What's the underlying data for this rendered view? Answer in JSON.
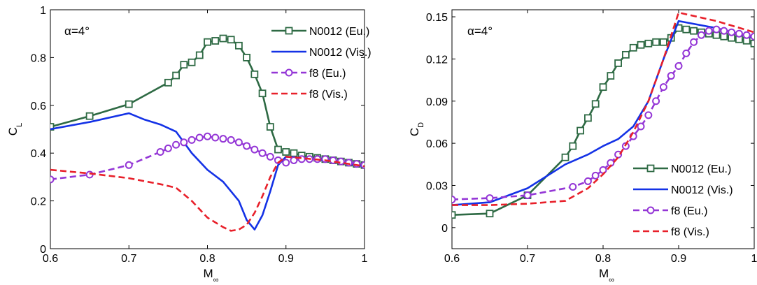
{
  "chart_data": [
    {
      "type": "line",
      "annotation": "α=4°",
      "xlabel": "M",
      "xlabel_sub": "∞",
      "ylabel": "C",
      "ylabel_sub": "L",
      "xlim": [
        0.6,
        1.0
      ],
      "ylim": [
        0,
        1.0
      ],
      "xticks": [
        0.6,
        0.7,
        0.8,
        0.9,
        1.0
      ],
      "xtick_labels": [
        "0.6",
        "0.7",
        "0.8",
        "0.9",
        "1"
      ],
      "yticks": [
        0,
        0.2,
        0.4,
        0.6,
        0.8,
        1.0
      ],
      "ytick_labels": [
        "0",
        "0.2",
        "0.4",
        "0.6",
        "0.8",
        "1"
      ],
      "grid": false,
      "legend_position": "top-right",
      "series": [
        {
          "name": "N0012 (Eu.)",
          "color": "#2e6a44",
          "line": "solid",
          "marker": "square",
          "x": [
            0.6,
            0.65,
            0.7,
            0.75,
            0.76,
            0.77,
            0.78,
            0.79,
            0.8,
            0.81,
            0.82,
            0.83,
            0.84,
            0.85,
            0.86,
            0.87,
            0.88,
            0.89,
            0.9,
            0.91,
            0.92,
            0.93,
            0.94,
            0.95,
            0.96,
            0.97,
            0.98,
            0.99,
            1.0
          ],
          "y": [
            0.51,
            0.555,
            0.605,
            0.695,
            0.725,
            0.77,
            0.78,
            0.81,
            0.865,
            0.87,
            0.88,
            0.875,
            0.85,
            0.8,
            0.73,
            0.65,
            0.51,
            0.415,
            0.405,
            0.4,
            0.39,
            0.385,
            0.38,
            0.375,
            0.37,
            0.365,
            0.36,
            0.355,
            0.35
          ]
        },
        {
          "name": "N0012 (Vis.)",
          "color": "#1432e6",
          "line": "solid",
          "marker": "none",
          "x": [
            0.6,
            0.65,
            0.7,
            0.72,
            0.74,
            0.76,
            0.78,
            0.8,
            0.82,
            0.84,
            0.85,
            0.86,
            0.87,
            0.88,
            0.89,
            0.9,
            0.92,
            0.95,
            1.0
          ],
          "y": [
            0.5,
            0.53,
            0.567,
            0.54,
            0.52,
            0.49,
            0.4,
            0.33,
            0.28,
            0.2,
            0.12,
            0.08,
            0.14,
            0.24,
            0.35,
            0.385,
            0.38,
            0.37,
            0.345
          ]
        },
        {
          "name": "f8  (Eu.)",
          "color": "#9436d6",
          "line": "dashed",
          "marker": "circle",
          "x": [
            0.6,
            0.65,
            0.7,
            0.74,
            0.75,
            0.76,
            0.77,
            0.78,
            0.79,
            0.8,
            0.81,
            0.82,
            0.83,
            0.84,
            0.85,
            0.86,
            0.87,
            0.88,
            0.89,
            0.9,
            0.91,
            0.92,
            0.93,
            0.94,
            0.95,
            0.96,
            0.97,
            0.98,
            0.99,
            1.0
          ],
          "y": [
            0.29,
            0.31,
            0.35,
            0.405,
            0.42,
            0.435,
            0.445,
            0.455,
            0.465,
            0.47,
            0.465,
            0.46,
            0.455,
            0.445,
            0.43,
            0.415,
            0.4,
            0.385,
            0.37,
            0.36,
            0.37,
            0.375,
            0.375,
            0.375,
            0.375,
            0.37,
            0.365,
            0.36,
            0.355,
            0.35
          ]
        },
        {
          "name": "f8  (Vis.)",
          "color": "#e8202a",
          "line": "dashed",
          "marker": "none",
          "x": [
            0.6,
            0.65,
            0.7,
            0.74,
            0.76,
            0.78,
            0.8,
            0.82,
            0.83,
            0.84,
            0.85,
            0.86,
            0.87,
            0.88,
            0.89,
            0.9,
            0.95,
            1.0
          ],
          "y": [
            0.33,
            0.315,
            0.295,
            0.27,
            0.255,
            0.2,
            0.13,
            0.09,
            0.075,
            0.08,
            0.1,
            0.15,
            0.22,
            0.3,
            0.36,
            0.385,
            0.37,
            0.345
          ]
        }
      ]
    },
    {
      "type": "line",
      "annotation": "α=4°",
      "xlabel": "M",
      "xlabel_sub": "∞",
      "ylabel": "C",
      "ylabel_sub": "D",
      "xlim": [
        0.6,
        1.0
      ],
      "ylim": [
        -0.015,
        0.155
      ],
      "xticks": [
        0.6,
        0.7,
        0.8,
        0.9,
        1.0
      ],
      "xtick_labels": [
        "0.6",
        "0.7",
        "0.8",
        "0.9",
        "1"
      ],
      "yticks": [
        0,
        0.03,
        0.06,
        0.09,
        0.12,
        0.15
      ],
      "ytick_labels": [
        "0",
        "0.03",
        "0.06",
        "0.09",
        "0.12",
        "0.15"
      ],
      "grid": false,
      "legend_position": "bottom-right",
      "series": [
        {
          "name": "N0012 (Eu.)",
          "color": "#2e6a44",
          "line": "solid",
          "marker": "square",
          "x": [
            0.6,
            0.65,
            0.7,
            0.75,
            0.76,
            0.77,
            0.78,
            0.79,
            0.8,
            0.81,
            0.82,
            0.83,
            0.84,
            0.85,
            0.86,
            0.87,
            0.88,
            0.89,
            0.9,
            0.91,
            0.92,
            0.93,
            0.94,
            0.95,
            0.96,
            0.97,
            0.98,
            0.99,
            1.0
          ],
          "y": [
            0.009,
            0.01,
            0.023,
            0.05,
            0.058,
            0.069,
            0.078,
            0.088,
            0.1,
            0.108,
            0.117,
            0.123,
            0.128,
            0.13,
            0.131,
            0.132,
            0.132,
            0.135,
            0.142,
            0.141,
            0.14,
            0.139,
            0.138,
            0.137,
            0.136,
            0.135,
            0.134,
            0.133,
            0.131
          ]
        },
        {
          "name": "N0012 (Vis.)",
          "color": "#1432e6",
          "line": "solid",
          "marker": "none",
          "x": [
            0.6,
            0.65,
            0.7,
            0.75,
            0.78,
            0.8,
            0.82,
            0.84,
            0.86,
            0.88,
            0.9,
            0.95,
            1.0
          ],
          "y": [
            0.016,
            0.018,
            0.028,
            0.045,
            0.052,
            0.058,
            0.063,
            0.072,
            0.09,
            0.12,
            0.147,
            0.142,
            0.135
          ]
        },
        {
          "name": "f8  (Eu.)",
          "color": "#9436d6",
          "line": "dashed",
          "marker": "circle",
          "x": [
            0.6,
            0.65,
            0.7,
            0.76,
            0.78,
            0.79,
            0.8,
            0.81,
            0.82,
            0.83,
            0.84,
            0.85,
            0.86,
            0.87,
            0.88,
            0.89,
            0.9,
            0.91,
            0.92,
            0.93,
            0.94,
            0.95,
            0.96,
            0.97,
            0.98,
            0.99,
            1.0
          ],
          "y": [
            0.02,
            0.021,
            0.023,
            0.029,
            0.033,
            0.037,
            0.041,
            0.046,
            0.052,
            0.058,
            0.065,
            0.072,
            0.08,
            0.09,
            0.1,
            0.108,
            0.115,
            0.124,
            0.132,
            0.137,
            0.14,
            0.141,
            0.14,
            0.139,
            0.138,
            0.137,
            0.136
          ]
        },
        {
          "name": "f8  (Vis.)",
          "color": "#e8202a",
          "line": "dashed",
          "marker": "none",
          "x": [
            0.6,
            0.65,
            0.7,
            0.75,
            0.78,
            0.8,
            0.82,
            0.84,
            0.86,
            0.88,
            0.9,
            0.95,
            1.0
          ],
          "y": [
            0.016,
            0.016,
            0.017,
            0.019,
            0.028,
            0.038,
            0.05,
            0.068,
            0.09,
            0.12,
            0.153,
            0.147,
            0.139
          ]
        }
      ]
    }
  ]
}
